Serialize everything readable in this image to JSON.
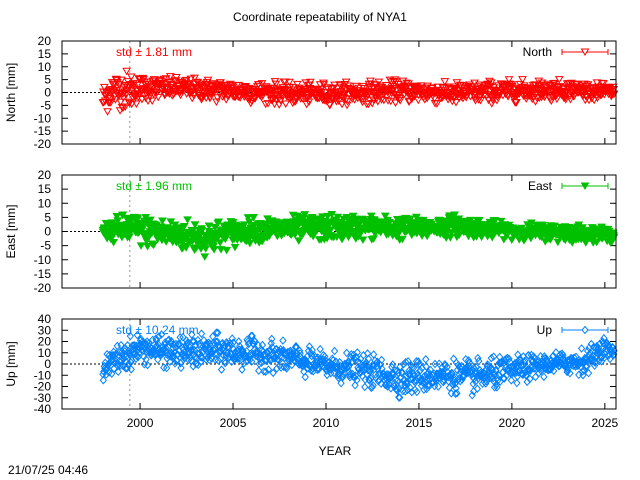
{
  "chart_data": {
    "title": "Coordinate repeatability of NYA1",
    "xlabel": "YEAR",
    "timestamp": "21/07/25 04:46",
    "xlim": [
      1995.8,
      2025.6
    ],
    "xticks": [
      2000,
      2005,
      2010,
      2015,
      2020,
      2025
    ],
    "reference_line_x": 1999.45,
    "panels": [
      {
        "type": "scatter",
        "name": "north",
        "ylabel": "North [mm]",
        "legend": "North",
        "legend_position": "top-right",
        "std_label": "std ± 1.81 mm",
        "color": "#ff0000",
        "marker": "triangle-down-open",
        "ylim": [
          -20,
          20
        ],
        "yticks": [
          -20,
          -15,
          -10,
          -5,
          0,
          5,
          10,
          15,
          20
        ],
        "x_start": 1998.0,
        "x_end": 2025.5,
        "std": 1.81,
        "envelope": [
          {
            "x": 1998.0,
            "min": -10,
            "max": 4
          },
          {
            "x": 1998.5,
            "min": -6,
            "max": 8
          },
          {
            "x": 1999.3,
            "min": -8,
            "max": 9
          },
          {
            "x": 2000.0,
            "min": -4,
            "max": 7
          },
          {
            "x": 2002.0,
            "min": -3,
            "max": 6
          },
          {
            "x": 2005.0,
            "min": -4,
            "max": 5
          },
          {
            "x": 2008.0,
            "min": -5,
            "max": 4
          },
          {
            "x": 2011.0,
            "min": -5,
            "max": 4
          },
          {
            "x": 2014.0,
            "min": -4,
            "max": 5
          },
          {
            "x": 2017.0,
            "min": -5,
            "max": 4
          },
          {
            "x": 2020.0,
            "min": -4,
            "max": 5
          },
          {
            "x": 2023.0,
            "min": -3,
            "max": 5
          },
          {
            "x": 2025.5,
            "min": -3,
            "max": 3
          }
        ]
      },
      {
        "type": "scatter",
        "name": "east",
        "ylabel": "East [mm]",
        "legend": "East",
        "legend_position": "top-right",
        "std_label": "std ± 1.96 mm",
        "color": "#00c000",
        "marker": "triangle-down-filled",
        "ylim": [
          -20,
          20
        ],
        "yticks": [
          -20,
          -15,
          -10,
          -5,
          0,
          5,
          10,
          15,
          20
        ],
        "x_start": 1998.0,
        "x_end": 2025.5,
        "std": 1.96,
        "envelope": [
          {
            "x": 1998.0,
            "min": -3,
            "max": 3
          },
          {
            "x": 1999.3,
            "min": -5,
            "max": 7
          },
          {
            "x": 2001.0,
            "min": -6,
            "max": 5
          },
          {
            "x": 2003.5,
            "min": -9,
            "max": 4
          },
          {
            "x": 2006.0,
            "min": -4,
            "max": 5
          },
          {
            "x": 2009.0,
            "min": -4,
            "max": 6
          },
          {
            "x": 2012.0,
            "min": -3,
            "max": 6
          },
          {
            "x": 2015.0,
            "min": -3,
            "max": 5
          },
          {
            "x": 2017.0,
            "min": -2,
            "max": 6
          },
          {
            "x": 2020.0,
            "min": -3,
            "max": 3
          },
          {
            "x": 2023.0,
            "min": -4,
            "max": 3
          },
          {
            "x": 2025.5,
            "min": -4,
            "max": 1
          }
        ]
      },
      {
        "type": "scatter",
        "name": "up",
        "ylabel": "Up [mm]",
        "legend": "Up",
        "legend_position": "top-right",
        "std_label": "std ± 10.24 mm",
        "color": "#0080ff",
        "marker": "diamond-open",
        "ylim": [
          -40,
          40
        ],
        "yticks": [
          -40,
          -30,
          -20,
          -10,
          0,
          10,
          20,
          30,
          40
        ],
        "x_start": 1998.0,
        "x_end": 2025.5,
        "std": 10.24,
        "envelope": [
          {
            "x": 1998.0,
            "min": -15,
            "max": 5
          },
          {
            "x": 1999.0,
            "min": -10,
            "max": 22
          },
          {
            "x": 2000.0,
            "min": 0,
            "max": 28
          },
          {
            "x": 2002.0,
            "min": -5,
            "max": 25
          },
          {
            "x": 2004.0,
            "min": -5,
            "max": 28
          },
          {
            "x": 2006.0,
            "min": -5,
            "max": 25
          },
          {
            "x": 2008.0,
            "min": -10,
            "max": 20
          },
          {
            "x": 2010.0,
            "min": -15,
            "max": 12
          },
          {
            "x": 2012.0,
            "min": -20,
            "max": 10
          },
          {
            "x": 2014.0,
            "min": -30,
            "max": 5
          },
          {
            "x": 2016.0,
            "min": -25,
            "max": 5
          },
          {
            "x": 2018.0,
            "min": -28,
            "max": 5
          },
          {
            "x": 2020.0,
            "min": -20,
            "max": 8
          },
          {
            "x": 2022.0,
            "min": -10,
            "max": 10
          },
          {
            "x": 2024.0,
            "min": -10,
            "max": 15
          },
          {
            "x": 2025.0,
            "min": 5,
            "max": 25
          },
          {
            "x": 2025.5,
            "min": 0,
            "max": 15
          }
        ]
      }
    ]
  }
}
